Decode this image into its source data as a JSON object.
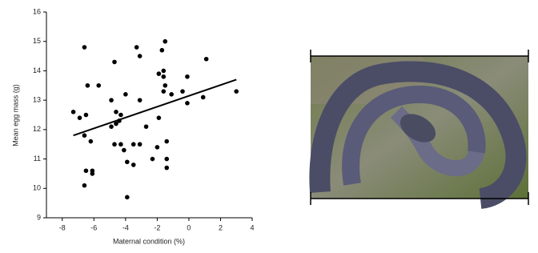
{
  "chart_data": {
    "type": "scatter",
    "xlabel": "Maternal condition (%)",
    "ylabel": "Mean egg mass (g)",
    "xlim": [
      -9,
      4
    ],
    "ylim": [
      9,
      16
    ],
    "xticks": [
      -8,
      -6,
      -4,
      -2,
      0,
      2,
      4
    ],
    "yticks": [
      9,
      10,
      11,
      12,
      13,
      14,
      15,
      16
    ],
    "series": [
      {
        "color": "#000000",
        "x": [
          -6.6,
          -1.5,
          -3.3,
          -3.1,
          -1.7,
          -4.7,
          1.1,
          -1.6,
          -1.9,
          -1.6,
          -6.4,
          -5.7,
          -1.5,
          -0.1,
          3.0,
          -1.6,
          -1.1,
          -0.4,
          0.9,
          -4.9,
          -3.1,
          -0.1,
          -4.0,
          -7.3,
          -6.9,
          -6.5,
          -4.6,
          -4.3,
          -4.4,
          -4.6,
          -4.9,
          -2.7,
          -1.9,
          -6.6,
          -6.2,
          -4.7,
          -4.3,
          -4.1,
          -3.5,
          -3.1,
          -2.0,
          -1.4,
          -2.3,
          -1.4,
          -3.9,
          -3.5,
          -1.4,
          -6.5,
          -6.1,
          -6.1,
          -6.6,
          -3.9
        ],
        "values": [
          14.8,
          15.0,
          14.8,
          14.5,
          14.7,
          14.3,
          14.4,
          14.0,
          13.9,
          13.8,
          13.5,
          13.5,
          13.5,
          13.8,
          13.3,
          13.3,
          13.2,
          13.3,
          13.1,
          13.0,
          13.0,
          12.9,
          13.2,
          12.6,
          12.4,
          12.5,
          12.6,
          12.5,
          12.3,
          12.2,
          12.1,
          12.1,
          12.4,
          11.8,
          11.6,
          11.5,
          11.5,
          11.3,
          11.5,
          11.5,
          11.4,
          11.6,
          11.0,
          11.0,
          10.9,
          10.8,
          10.7,
          10.6,
          10.6,
          10.5,
          10.1,
          9.7
        ]
      }
    ],
    "trend": {
      "color": "#000000",
      "x": [
        -7.3,
        3.0
      ],
      "values": [
        11.8,
        13.7
      ]
    }
  }
}
